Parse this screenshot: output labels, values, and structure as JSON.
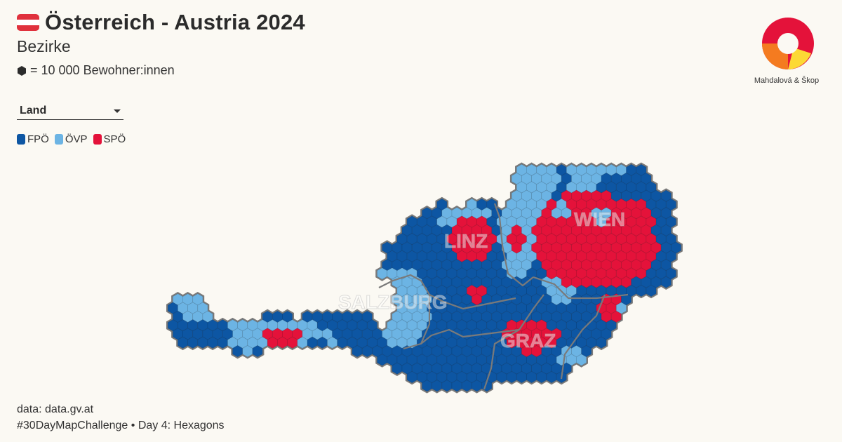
{
  "header": {
    "title": "Österreich - Austria 2024",
    "subtitle": "Bezirke",
    "unit_text": "= 10 000 Bewohner:innen",
    "unit_icon": "hexagon-icon"
  },
  "flag": {
    "colors": [
      "#e0313d",
      "#ffffff",
      "#e0313d"
    ]
  },
  "dropdown": {
    "selected": "Land"
  },
  "legend": {
    "items": [
      {
        "label": "FPÖ",
        "color": "#0d56a3"
      },
      {
        "label": "ÖVP",
        "color": "#6cb4e4"
      },
      {
        "label": "SPÖ",
        "color": "#e4123a"
      }
    ]
  },
  "map": {
    "border_color": "#7a7a7a",
    "city_labels": [
      "SALZBURG",
      "LINZ",
      "WIEN",
      "GRAZ"
    ]
  },
  "logo": {
    "text": "Mahdalová & Škop",
    "colors": [
      "#e4123a",
      "#f47b20",
      "#fcd935"
    ]
  },
  "footer": {
    "source": "data: data.gv.at",
    "challenge": "#30DayMapChallenge • Day 4: Hexagons"
  }
}
